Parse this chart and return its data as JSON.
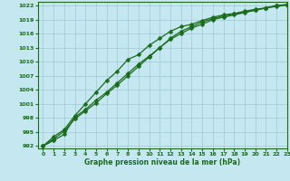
{
  "xlabel": "Graphe pression niveau de la mer (hPa)",
  "bg_color": "#c5e8f0",
  "grid_color": "#9fc8d8",
  "line_color": "#1a6b1a",
  "marker": "D",
  "markersize": 2.5,
  "linewidth": 0.9,
  "ylim": [
    991.5,
    1022.8
  ],
  "xlim": [
    -0.5,
    23
  ],
  "yticks": [
    992,
    995,
    998,
    1001,
    1004,
    1007,
    1010,
    1013,
    1016,
    1019,
    1022
  ],
  "xticks": [
    0,
    1,
    2,
    3,
    4,
    5,
    6,
    7,
    8,
    9,
    10,
    11,
    12,
    13,
    14,
    15,
    16,
    17,
    18,
    19,
    20,
    21,
    22,
    23
  ],
  "series": [
    [
      992,
      994,
      995.5,
      998.5,
      1001.0,
      1003.5,
      1006.0,
      1008.0,
      1010.5,
      1011.5,
      1013.5,
      1015.0,
      1016.5,
      1017.5,
      1018.0,
      1018.8,
      1019.5,
      1020.0,
      1020.3,
      1020.8,
      1021.2,
      1021.5,
      1022.0,
      1022.2
    ],
    [
      992,
      993.2,
      994.5,
      998.2,
      999.8,
      1001.8,
      1003.5,
      1005.5,
      1007.5,
      1009.5,
      1011.2,
      1013.0,
      1015.0,
      1016.5,
      1017.5,
      1018.5,
      1019.2,
      1019.8,
      1020.2,
      1020.6,
      1021.0,
      1021.5,
      1022.0,
      1022.2
    ],
    [
      992,
      993.5,
      995.2,
      997.8,
      999.5,
      1001.2,
      1003.2,
      1005.0,
      1007.0,
      1009.0,
      1011.0,
      1013.0,
      1014.8,
      1016.0,
      1017.2,
      1018.0,
      1019.0,
      1019.5,
      1020.0,
      1020.5,
      1021.0,
      1021.5,
      1021.8,
      1022.1
    ]
  ]
}
